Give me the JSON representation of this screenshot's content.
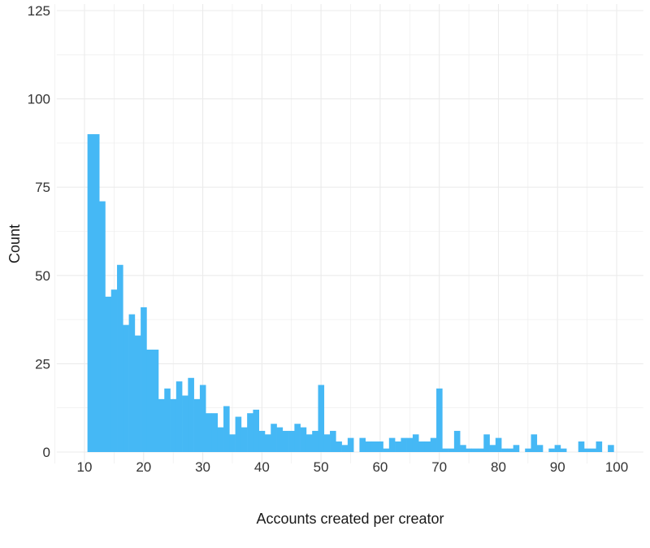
{
  "chart_data": {
    "type": "bar",
    "title": "",
    "xlabel": "Accounts created per creator",
    "ylabel": "Count",
    "xlim": [
      5.3,
      104.5
    ],
    "ylim": [
      0,
      125
    ],
    "x_ticks": [
      10,
      20,
      30,
      40,
      50,
      60,
      70,
      80,
      90,
      100
    ],
    "y_ticks": [
      0,
      25,
      50,
      75,
      100,
      125
    ],
    "grid": true,
    "bar_color": "#45b8f5",
    "bin_width": 1,
    "x": [
      11,
      12,
      13,
      14,
      15,
      16,
      17,
      18,
      19,
      20,
      21,
      22,
      23,
      24,
      25,
      26,
      27,
      28,
      29,
      30,
      31,
      32,
      33,
      34,
      35,
      36,
      37,
      38,
      39,
      40,
      41,
      42,
      43,
      44,
      45,
      46,
      47,
      48,
      49,
      50,
      51,
      52,
      53,
      54,
      55,
      56,
      57,
      58,
      59,
      60,
      61,
      62,
      63,
      64,
      65,
      66,
      67,
      68,
      69,
      70,
      71,
      72,
      73,
      74,
      75,
      76,
      77,
      78,
      79,
      80,
      81,
      82,
      83,
      84,
      85,
      86,
      87,
      88,
      89,
      90,
      91,
      92,
      93,
      94,
      95,
      96,
      97,
      98,
      99
    ],
    "values": [
      90,
      90,
      71,
      44,
      46,
      53,
      36,
      39,
      33,
      41,
      29,
      29,
      15,
      18,
      15,
      20,
      16,
      21,
      15,
      19,
      11,
      11,
      7,
      13,
      5,
      10,
      7,
      11,
      12,
      6,
      5,
      8,
      7,
      6,
      6,
      8,
      7,
      5,
      6,
      19,
      5,
      6,
      3,
      2,
      4,
      0,
      4,
      3,
      3,
      3,
      1,
      4,
      3,
      4,
      4,
      5,
      3,
      3,
      4,
      18,
      1,
      1,
      6,
      2,
      1,
      1,
      1,
      5,
      2,
      4,
      1,
      1,
      2,
      0,
      1,
      5,
      2,
      0,
      1,
      2,
      1,
      0,
      0,
      3,
      1,
      1,
      3,
      0,
      2
    ]
  }
}
